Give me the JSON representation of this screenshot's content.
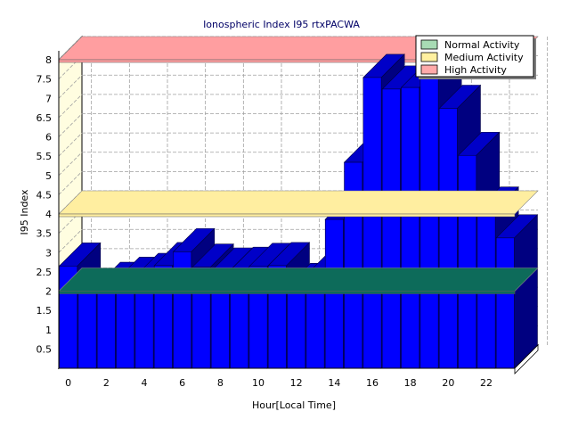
{
  "chart_data": {
    "type": "bar",
    "title": "Ionospheric Index I95 rtxPACWA",
    "xlabel": "Hour[Local Time]",
    "ylabel": "I95 Index",
    "x": [
      0,
      1,
      2,
      3,
      4,
      5,
      6,
      7,
      8,
      9,
      10,
      11,
      12,
      13,
      14,
      15,
      16,
      17,
      18,
      19,
      20,
      21,
      22,
      23
    ],
    "xticks": [
      "0",
      "2",
      "4",
      "6",
      "8",
      "10",
      "12",
      "14",
      "16",
      "18",
      "20",
      "22"
    ],
    "yticks": [
      "0.5",
      "1",
      "1.5",
      "2",
      "2.5",
      "3",
      "3.5",
      "4",
      "4.5",
      "5",
      "5.5",
      "6",
      "6.5",
      "7",
      "7.5",
      "8"
    ],
    "ylim": [
      0,
      8
    ],
    "grid": true,
    "legend_position": "top-right",
    "series": [
      {
        "values": [
          2.65,
          1.95,
          2.15,
          2.28,
          2.38,
          2.66,
          3.02,
          2.62,
          2.52,
          2.54,
          2.64,
          2.66,
          2.12,
          2.42,
          3.86,
          5.34,
          7.54,
          7.24,
          7.28,
          7.58,
          6.74,
          5.52,
          4.1,
          3.38
        ]
      }
    ],
    "bands": [
      {
        "name": "Normal Activity",
        "from": 0,
        "to": 2,
        "color": "#0d6b5a",
        "legend_color": "#a8dbb4"
      },
      {
        "name": "Medium Activity",
        "from": 2,
        "to": 4,
        "color": "#ffeea0",
        "legend_color": "#fff0a0"
      },
      {
        "name": "High Activity",
        "from": 4,
        "to": 8,
        "color": "#ff9ea0",
        "legend_color": "#ffaaaa"
      }
    ],
    "colors": {
      "bar_front": "#0000ff",
      "bar_top": "#0000c8",
      "bar_side": "#000080",
      "back_wall": "#ffffff",
      "left_wall": "#fffde0",
      "grid": "#a0a0a0"
    }
  }
}
